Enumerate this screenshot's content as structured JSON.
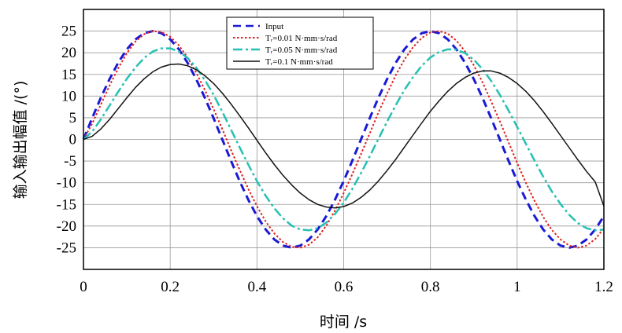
{
  "chart_data": {
    "type": "line",
    "xlabel": "时间 /s",
    "ylabel": "输入输出幅值 /(°)",
    "xlim": [
      0,
      1.2
    ],
    "ylim": [
      -30,
      30
    ],
    "x_ticks": [
      "0",
      "0.2",
      "0.4",
      "0.6",
      "0.8",
      "1",
      "1.2"
    ],
    "y_ticks": [
      "25",
      "20",
      "15",
      "10",
      "5",
      "0",
      "-5",
      "-10",
      "-15",
      "-20",
      "-25"
    ],
    "grid": true,
    "legend_position": "top-center",
    "x": [
      0,
      0.02,
      0.04,
      0.06,
      0.08,
      0.1,
      0.12,
      0.14,
      0.16,
      0.18,
      0.2,
      0.22,
      0.24,
      0.26,
      0.28,
      0.3,
      0.32,
      0.34,
      0.36,
      0.38,
      0.4,
      0.42,
      0.44,
      0.46,
      0.48,
      0.5,
      0.52,
      0.54,
      0.56,
      0.58,
      0.6,
      0.62,
      0.64,
      0.66,
      0.68,
      0.7,
      0.72,
      0.74,
      0.76,
      0.78,
      0.8,
      0.82,
      0.84,
      0.86,
      0.88,
      0.9,
      0.92,
      0.94,
      0.96,
      0.98,
      1.0,
      1.02,
      1.04,
      1.06,
      1.08,
      1.1,
      1.12,
      1.14,
      1.16,
      1.18,
      1.2
    ],
    "series": [
      {
        "name": "Input",
        "color": "#1a1ad6",
        "dash": "10,6",
        "width": 3,
        "values": [
          0,
          4.9,
          9.6,
          13.9,
          17.7,
          20.8,
          23.1,
          24.5,
          25.0,
          24.5,
          23.1,
          20.8,
          17.7,
          13.9,
          9.6,
          4.9,
          0,
          -4.9,
          -9.6,
          -13.9,
          -17.7,
          -20.8,
          -23.1,
          -24.5,
          -25.0,
          -24.5,
          -23.1,
          -20.8,
          -17.7,
          -13.9,
          -9.6,
          -4.9,
          0,
          4.9,
          9.6,
          13.9,
          17.7,
          20.8,
          23.1,
          24.5,
          25.0,
          24.5,
          23.1,
          20.8,
          17.7,
          13.9,
          9.6,
          4.9,
          0,
          -4.9,
          -9.6,
          -13.9,
          -17.7,
          -20.8,
          -23.1,
          -24.5,
          -25.0,
          -24.5,
          -23.1,
          -20.8,
          -17.7
        ]
      },
      {
        "name": "Tᵣ=0.01 N·mm·s/rad",
        "color": "#e0211f",
        "dash": "2.5,2.5",
        "width": 2,
        "values": [
          0,
          3.6,
          8.0,
          12.4,
          16.4,
          19.9,
          22.6,
          24.3,
          25.0,
          24.8,
          23.7,
          21.7,
          18.9,
          15.4,
          11.4,
          7.0,
          2.4,
          -2.4,
          -7.0,
          -11.4,
          -15.4,
          -18.9,
          -21.7,
          -23.7,
          -24.8,
          -25.0,
          -24.3,
          -22.6,
          -19.9,
          -16.4,
          -12.4,
          -8.0,
          -3.4,
          1.4,
          6.2,
          10.6,
          14.8,
          18.4,
          21.3,
          23.4,
          24.7,
          25.0,
          24.4,
          22.8,
          20.3,
          17.1,
          13.2,
          8.8,
          4.2,
          -0.6,
          -5.4,
          -10.0,
          -14.2,
          -17.9,
          -20.9,
          -23.1,
          -24.5,
          -25.0,
          -24.5,
          -23.0,
          -20.5
        ]
      },
      {
        "name": "Tᵣ=0.05 N·mm·s/rad",
        "color": "#26c0b4",
        "dash": "12,4,3,4",
        "width": 2.5,
        "values": [
          0,
          1.8,
          4.6,
          7.8,
          11.0,
          14.0,
          16.6,
          18.8,
          20.3,
          21.0,
          21.0,
          20.3,
          18.8,
          16.6,
          13.7,
          10.3,
          6.4,
          2.3,
          -1.8,
          -5.8,
          -9.6,
          -13.0,
          -15.9,
          -18.2,
          -19.9,
          -20.8,
          -21.0,
          -20.5,
          -19.2,
          -17.2,
          -14.6,
          -11.4,
          -7.8,
          -3.9,
          0.1,
          4.1,
          7.9,
          11.4,
          14.4,
          17.0,
          18.9,
          20.2,
          20.8,
          20.7,
          19.9,
          18.4,
          16.2,
          13.5,
          10.3,
          6.7,
          2.9,
          -1.0,
          -4.9,
          -8.6,
          -12.0,
          -14.9,
          -17.4,
          -19.3,
          -20.5,
          -21.0,
          -20.8
        ]
      },
      {
        "name": "Tᵣ=0.1 N·mm·s/rad",
        "color": "#111111",
        "dash": "",
        "width": 1.5,
        "values": [
          0,
          0.7,
          2.4,
          4.6,
          7.1,
          9.6,
          12.0,
          14.0,
          15.6,
          16.7,
          17.3,
          17.4,
          17.0,
          16.1,
          14.7,
          12.9,
          10.7,
          8.2,
          5.5,
          2.7,
          -0.2,
          -3.1,
          -5.8,
          -8.3,
          -10.5,
          -12.4,
          -13.9,
          -15.0,
          -15.6,
          -15.8,
          -15.5,
          -14.7,
          -13.4,
          -11.7,
          -9.6,
          -7.2,
          -4.6,
          -1.8,
          1.0,
          3.8,
          6.5,
          8.9,
          11.1,
          12.9,
          14.3,
          15.3,
          15.8,
          15.8,
          15.3,
          14.3,
          12.9,
          11.1,
          8.9,
          6.4,
          3.7,
          0.9,
          -1.9,
          -4.7,
          -7.4,
          -9.8,
          -15.4
        ]
      }
    ]
  }
}
